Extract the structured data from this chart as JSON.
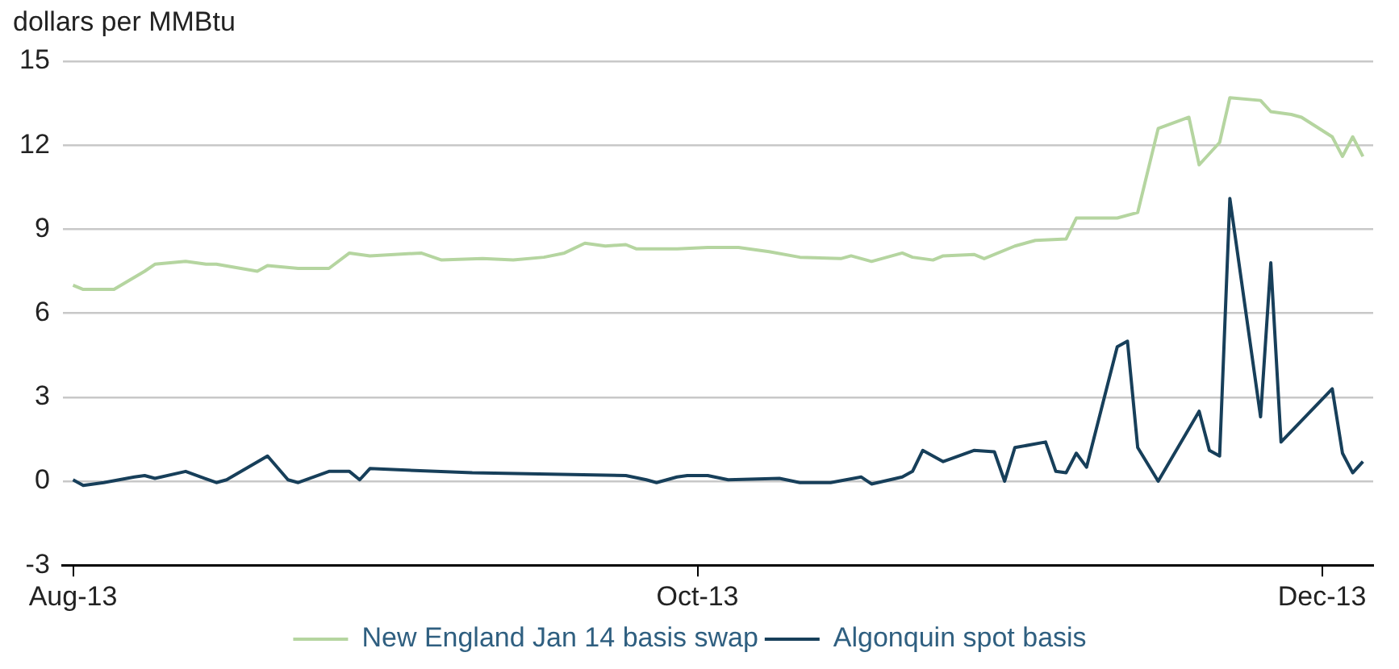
{
  "chart_data": {
    "type": "line",
    "ylabel": "dollars per MMBtu",
    "legend": "bottom",
    "grid": "y",
    "marker": "none",
    "line_style": "solid",
    "xlim": [
      "2013-07-31",
      "2013-12-06"
    ],
    "xticks": [
      {
        "value": "2013-08-01",
        "label": "Aug-13"
      },
      {
        "value": "2013-10-01",
        "label": "Oct-13"
      },
      {
        "value": "2013-12-01",
        "label": "Dec-13"
      }
    ],
    "ylim": [
      -3,
      15
    ],
    "yticks": [
      -3,
      0,
      3,
      6,
      9,
      12,
      15
    ],
    "series": [
      {
        "name": "New England Jan 14 basis swap",
        "color": "#b5d5a0",
        "x": [
          "2013-08-01",
          "2013-08-02",
          "2013-08-05",
          "2013-08-08",
          "2013-08-09",
          "2013-08-12",
          "2013-08-14",
          "2013-08-15",
          "2013-08-19",
          "2013-08-20",
          "2013-08-23",
          "2013-08-26",
          "2013-08-28",
          "2013-08-30",
          "2013-09-04",
          "2013-09-06",
          "2013-09-10",
          "2013-09-13",
          "2013-09-16",
          "2013-09-18",
          "2013-09-20",
          "2013-09-22",
          "2013-09-24",
          "2013-09-25",
          "2013-09-26",
          "2013-09-29",
          "2013-10-02",
          "2013-10-05",
          "2013-10-08",
          "2013-10-11",
          "2013-10-15",
          "2013-10-16",
          "2013-10-18",
          "2013-10-21",
          "2013-10-22",
          "2013-10-24",
          "2013-10-25",
          "2013-10-28",
          "2013-10-29",
          "2013-11-01",
          "2013-11-03",
          "2013-11-06",
          "2013-11-07",
          "2013-11-11",
          "2013-11-13",
          "2013-11-15",
          "2013-11-18",
          "2013-11-19",
          "2013-11-21",
          "2013-11-22",
          "2013-11-25",
          "2013-11-26",
          "2013-11-28",
          "2013-11-29",
          "2013-12-02",
          "2013-12-03",
          "2013-12-04",
          "2013-12-05"
        ],
        "values": [
          7.0,
          6.85,
          6.85,
          7.5,
          7.75,
          7.85,
          7.75,
          7.75,
          7.5,
          7.7,
          7.6,
          7.6,
          8.15,
          8.05,
          8.15,
          7.9,
          7.95,
          7.9,
          8.0,
          8.15,
          8.5,
          8.4,
          8.45,
          8.3,
          8.3,
          8.3,
          8.35,
          8.35,
          8.2,
          8.0,
          7.95,
          8.05,
          7.85,
          8.15,
          8.0,
          7.9,
          8.05,
          8.1,
          7.95,
          8.4,
          8.6,
          8.65,
          9.4,
          9.4,
          9.6,
          12.6,
          13.0,
          11.3,
          12.1,
          13.7,
          13.6,
          13.2,
          13.1,
          13.0,
          12.3,
          11.6,
          12.3,
          11.6
        ]
      },
      {
        "name": "Algonquin spot basis",
        "color": "#173f5a",
        "x": [
          "2013-08-01",
          "2013-08-02",
          "2013-08-04",
          "2013-08-07",
          "2013-08-08",
          "2013-08-09",
          "2013-08-12",
          "2013-08-15",
          "2013-08-16",
          "2013-08-20",
          "2013-08-22",
          "2013-08-23",
          "2013-08-26",
          "2013-08-28",
          "2013-08-29",
          "2013-08-30",
          "2013-09-09",
          "2013-09-24",
          "2013-09-26",
          "2013-09-27",
          "2013-09-29",
          "2013-09-30",
          "2013-10-02",
          "2013-10-04",
          "2013-10-09",
          "2013-10-11",
          "2013-10-14",
          "2013-10-17",
          "2013-10-18",
          "2013-10-21",
          "2013-10-22",
          "2013-10-23",
          "2013-10-25",
          "2013-10-28",
          "2013-10-30",
          "2013-10-31",
          "2013-11-01",
          "2013-11-04",
          "2013-11-05",
          "2013-11-06",
          "2013-11-07",
          "2013-11-08",
          "2013-11-11",
          "2013-11-12",
          "2013-11-13",
          "2013-11-15",
          "2013-11-19",
          "2013-11-20",
          "2013-11-21",
          "2013-11-22",
          "2013-11-25",
          "2013-11-26",
          "2013-11-27",
          "2013-12-02",
          "2013-12-03",
          "2013-12-04",
          "2013-12-05"
        ],
        "values": [
          0.05,
          -0.15,
          -0.05,
          0.15,
          0.2,
          0.1,
          0.35,
          -0.05,
          0.05,
          0.9,
          0.05,
          -0.05,
          0.35,
          0.35,
          0.05,
          0.45,
          0.3,
          0.2,
          0.05,
          -0.05,
          0.15,
          0.2,
          0.2,
          0.05,
          0.1,
          -0.05,
          -0.05,
          0.15,
          -0.1,
          0.15,
          0.35,
          1.1,
          0.7,
          1.1,
          1.05,
          0.0,
          1.2,
          1.4,
          0.35,
          0.3,
          1.0,
          0.5,
          4.8,
          5.0,
          1.2,
          0.0,
          2.5,
          1.1,
          0.9,
          10.1,
          2.3,
          7.8,
          1.4,
          3.3,
          1.0,
          0.3,
          0.7
        ]
      }
    ]
  }
}
